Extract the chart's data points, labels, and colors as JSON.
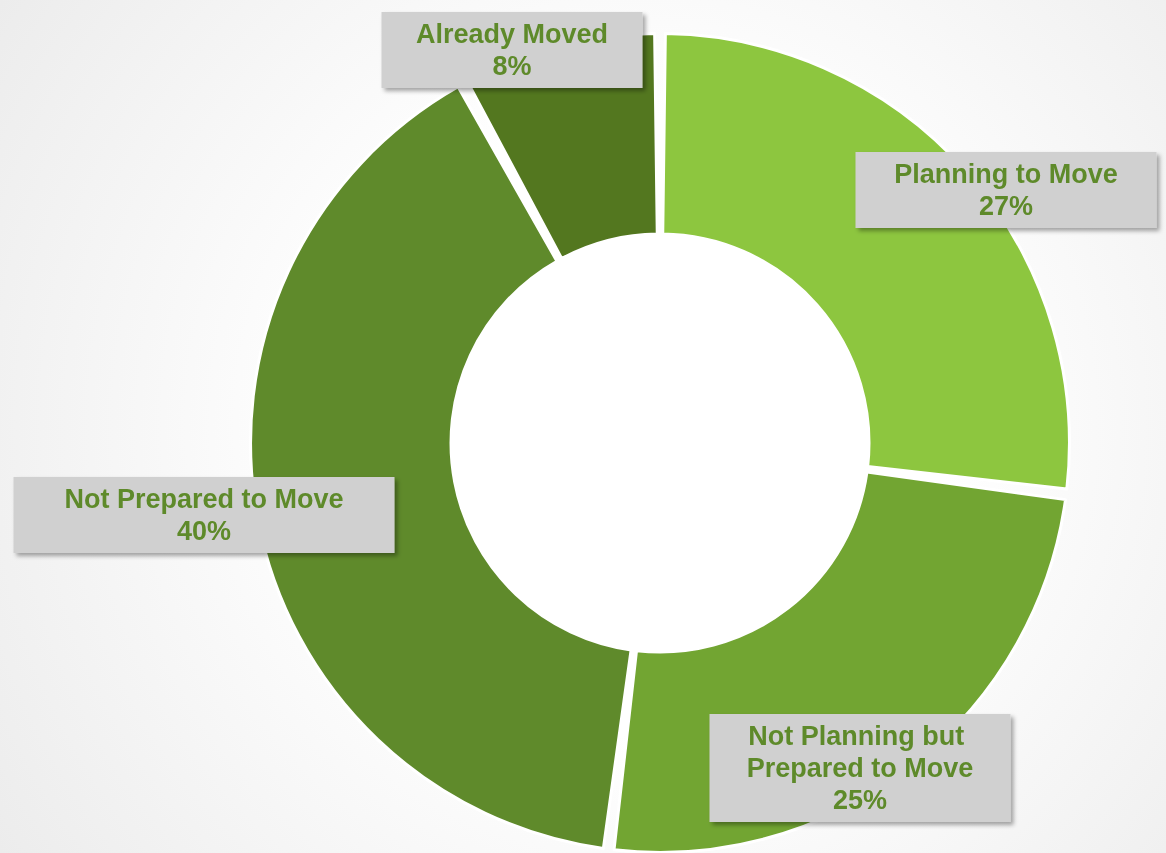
{
  "chart_data": {
    "type": "donut",
    "categories": [
      "Planning to Move",
      "Not Planning but Prepared to Move",
      "Not Prepared to Move",
      "Already Moved"
    ],
    "values": [
      27,
      25,
      40,
      8
    ],
    "value_labels": [
      "27%",
      "25%",
      "40%",
      "8%"
    ],
    "colors": [
      "#8dc63f",
      "#72a532",
      "#5f8a2b",
      "#53771f"
    ],
    "legend": false
  }
}
